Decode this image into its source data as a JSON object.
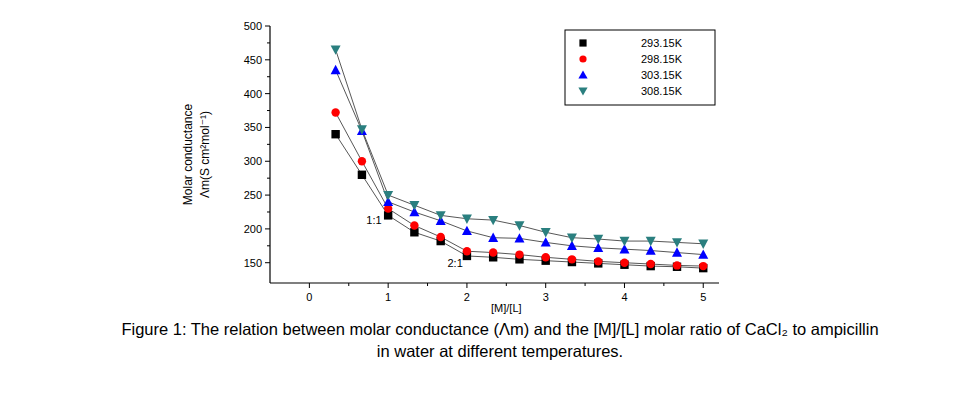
{
  "chart_data": {
    "type": "scatter",
    "caption": [
      "Figure 1: The relation between molar conductance (Λm) and the [M]/[L] molar ratio of CaCl₂ to ampicillin",
      "in water at different  temperatures."
    ],
    "x_label": "[M]/[L]",
    "y_label": [
      "Molar conductance",
      "Λm(S cm²mol⁻¹)"
    ],
    "x": [
      0.333,
      0.667,
      1,
      1.333,
      1.667,
      2,
      2.333,
      2.667,
      3,
      3.333,
      3.667,
      4,
      4.333,
      4.667,
      5
    ],
    "series": [
      {
        "name": "293.15K",
        "color": "#000000",
        "marker": "square",
        "line_style": "solid",
        "values": [
          340,
          280,
          220,
          195,
          182,
          160,
          158,
          155,
          153,
          151,
          149,
          147,
          145,
          144,
          142
        ]
      },
      {
        "name": "298.15K",
        "color": "#ff0000",
        "marker": "circle",
        "line_style": "solid",
        "values": [
          372,
          300,
          230,
          205,
          188,
          167,
          165,
          162,
          158,
          155,
          152,
          150,
          148,
          146,
          145
        ]
      },
      {
        "name": "303.15K",
        "color": "#0000ff",
        "marker": "triangle-up",
        "line_style": "solid",
        "values": [
          435,
          345,
          240,
          225,
          212,
          197,
          187,
          186,
          180,
          175,
          172,
          170,
          168,
          165,
          162
        ]
      },
      {
        "name": "308.15K",
        "color": "#2a7f7f",
        "marker": "triangle-down",
        "line_style": "solid",
        "values": [
          465,
          347,
          250,
          235,
          220,
          215,
          213,
          205,
          195,
          187,
          185,
          182,
          182,
          180,
          178
        ]
      }
    ],
    "annotations": [
      {
        "text": "1:1",
        "x": 0.82,
        "y": 207
      },
      {
        "text": "2:1",
        "x": 1.85,
        "y": 144
      }
    ],
    "xlim": [
      -0.5,
      5.2
    ],
    "ylim": [
      120,
      500
    ],
    "xticks": [
      0,
      1,
      2,
      3,
      4,
      5
    ],
    "yticks": [
      150,
      200,
      250,
      300,
      350,
      400,
      450,
      500
    ],
    "grid": false,
    "legend": "upper right"
  }
}
